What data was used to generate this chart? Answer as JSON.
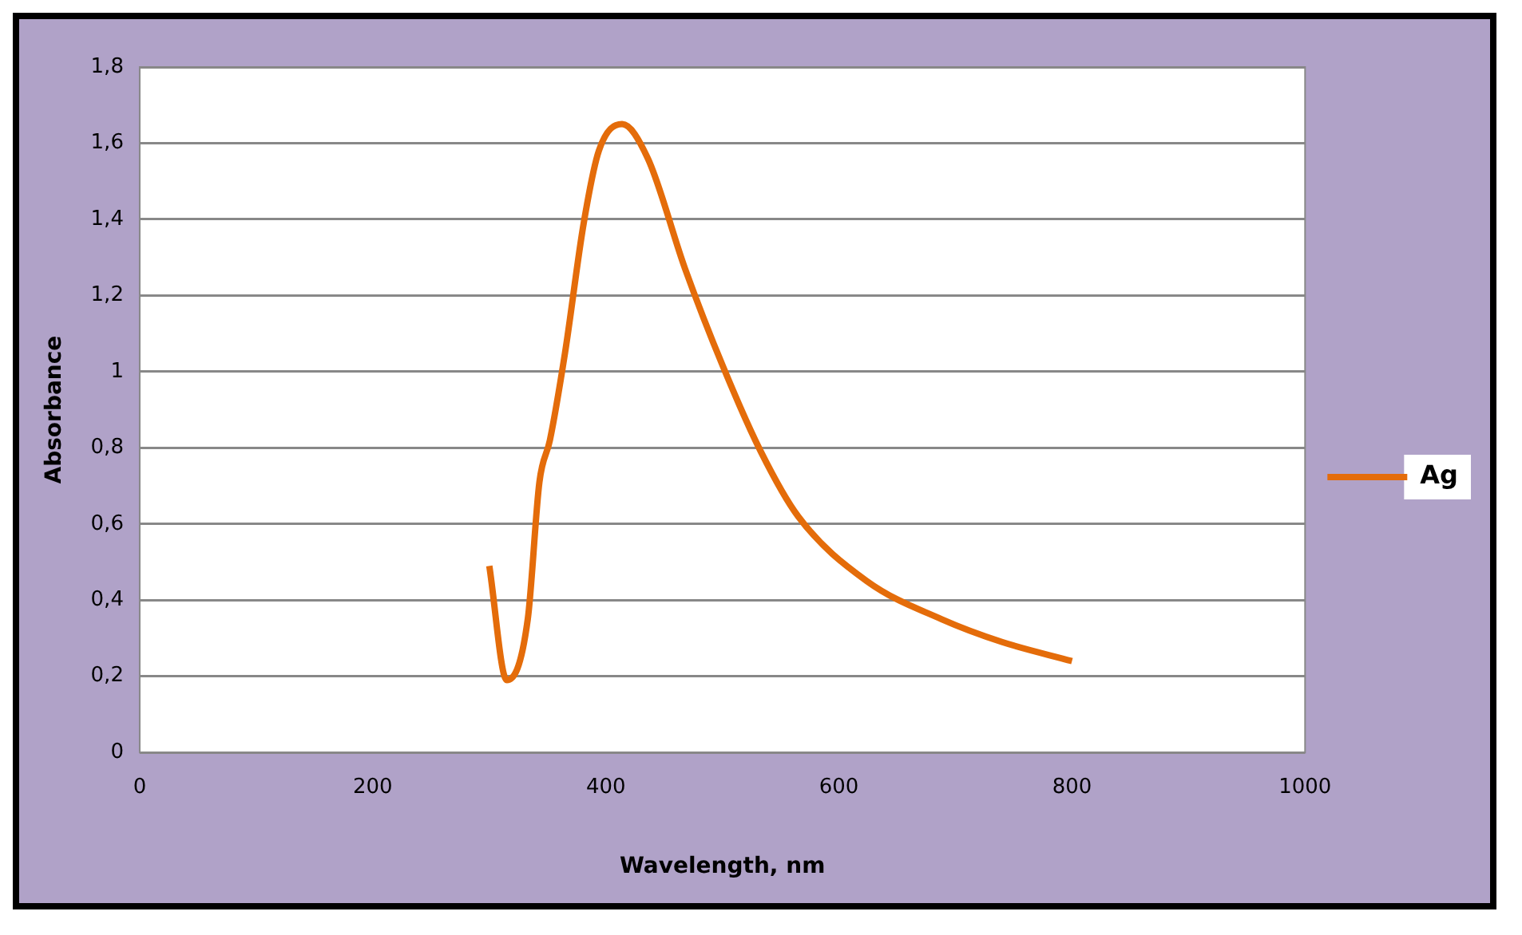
{
  "chart_data": {
    "type": "line",
    "xlabel": "Wavelength, nm",
    "ylabel": "Absorbance",
    "xlim": [
      0,
      1000
    ],
    "xticks": [
      0,
      200,
      400,
      600,
      800,
      1000
    ],
    "ylim": [
      0,
      1.8
    ],
    "yticks": [
      {
        "value": 0,
        "label": "0"
      },
      {
        "value": 0.2,
        "label": "0,2"
      },
      {
        "value": 0.4,
        "label": "0,4"
      },
      {
        "value": 0.6,
        "label": "0,6"
      },
      {
        "value": 0.8,
        "label": "0,8"
      },
      {
        "value": 1,
        "label": "1"
      },
      {
        "value": 1.2,
        "label": "1,2"
      },
      {
        "value": 1.4,
        "label": "1,4"
      },
      {
        "value": 1.6,
        "label": "1,6"
      },
      {
        "value": 1.8,
        "label": "1,8"
      }
    ],
    "grid": "y",
    "legend": "right",
    "marker": "none",
    "series": [
      {
        "name": "Ag",
        "color": "#e46c0a",
        "x": [
          300,
          315,
          333,
          343,
          352,
          365,
          381,
          394,
          414,
          436,
          468,
          501,
          533,
          565,
          624,
          688,
          740,
          800
        ],
        "values": [
          0.49,
          0.19,
          0.35,
          0.71,
          0.82,
          1.05,
          1.39,
          1.58,
          1.65,
          1.56,
          1.27,
          1.01,
          0.79,
          0.62,
          0.45,
          0.35,
          0.29,
          0.24
        ]
      }
    ]
  }
}
